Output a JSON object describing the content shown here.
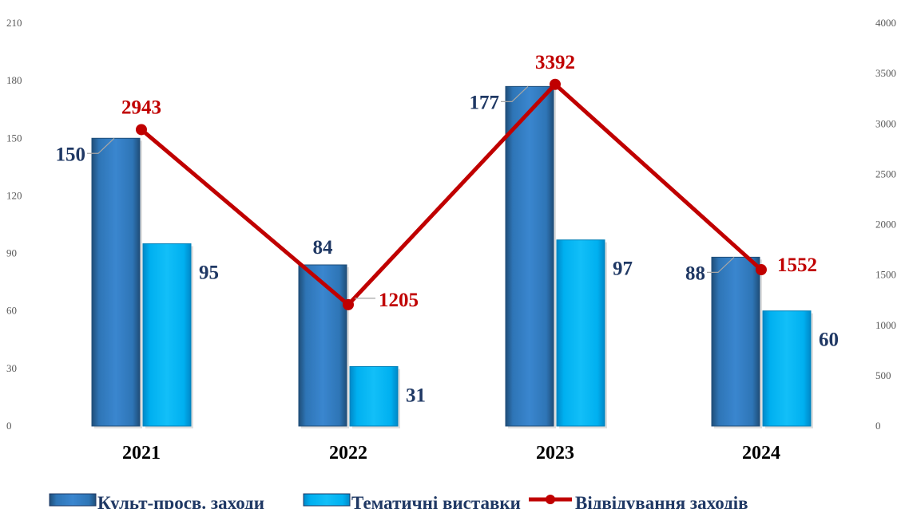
{
  "chart_data": {
    "type": "bar",
    "categories": [
      "2021",
      "2022",
      "2023",
      "2024"
    ],
    "series": [
      {
        "name": "Культ-просв. заходи",
        "type": "bar",
        "axis": "left",
        "values": [
          150,
          84,
          177,
          88
        ],
        "color": "#2e75b6"
      },
      {
        "name": "Тематичні виставки",
        "type": "bar",
        "axis": "left",
        "values": [
          95,
          31,
          97,
          60
        ],
        "color": "#00b0f0"
      },
      {
        "name": "Відвідування заходів",
        "type": "line",
        "axis": "right",
        "values": [
          2943,
          1205,
          3392,
          1552
        ],
        "color": "#c00000"
      }
    ],
    "y_left": {
      "min": 0,
      "max": 210,
      "step": 30,
      "ticks": [
        "0",
        "30",
        "60",
        "90",
        "120",
        "150",
        "180",
        "210"
      ]
    },
    "y_right": {
      "min": 0,
      "max": 4000,
      "step": 500,
      "ticks": [
        "0",
        "500",
        "1000",
        "1500",
        "2000",
        "2500",
        "3000",
        "3500",
        "4000"
      ]
    },
    "grid": false,
    "legend_position": "bottom",
    "title": "",
    "xlabel": "",
    "ylabel": ""
  }
}
